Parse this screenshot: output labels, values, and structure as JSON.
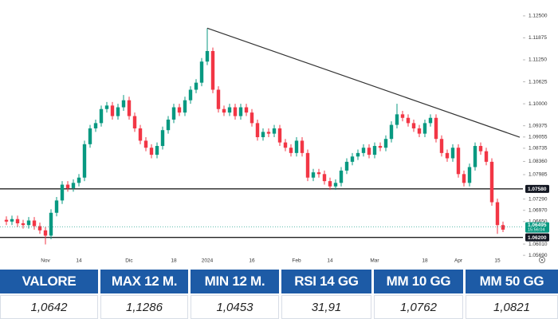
{
  "chart_data": {
    "type": "candlestick",
    "categories": [
      null,
      null,
      null,
      null,
      null,
      null,
      null,
      "Nov",
      null,
      null,
      null,
      null,
      null,
      "14",
      null,
      null,
      null,
      null,
      null,
      null,
      null,
      null,
      "Dic",
      null,
      null,
      null,
      null,
      null,
      null,
      null,
      "18",
      null,
      null,
      null,
      null,
      null,
      "2024",
      null,
      null,
      null,
      null,
      null,
      null,
      null,
      "16",
      null,
      null,
      null,
      null,
      null,
      null,
      null,
      "Feb",
      null,
      null,
      null,
      null,
      null,
      "14",
      null,
      null,
      null,
      null,
      null,
      null,
      null,
      "Mar",
      null,
      null,
      null,
      null,
      null,
      null,
      null,
      null,
      "18",
      null,
      null,
      null,
      null,
      null,
      "Apr",
      null,
      null,
      null,
      null,
      null,
      null,
      "15",
      null
    ],
    "open": [
      1.067,
      1.0665,
      1.0672,
      1.066,
      1.0655,
      1.0668,
      1.0652,
      1.064,
      1.0625,
      1.069,
      1.0725,
      1.077,
      1.076,
      1.0775,
      1.079,
      1.0885,
      1.093,
      1.0945,
      1.0985,
      1.0995,
      1.0965,
      1.099,
      1.101,
      1.0965,
      1.093,
      1.0895,
      1.0875,
      1.0855,
      1.088,
      1.0925,
      1.0955,
      1.099,
      1.0975,
      1.101,
      1.104,
      1.106,
      1.112,
      1.115,
      1.104,
      1.0985,
      1.0975,
      1.099,
      1.0965,
      1.099,
      1.0975,
      1.0945,
      1.0905,
      1.092,
      1.0915,
      1.093,
      1.089,
      1.0875,
      1.086,
      1.0895,
      1.086,
      1.079,
      1.0805,
      1.08,
      1.078,
      1.0765,
      1.0775,
      1.081,
      1.0835,
      1.085,
      1.086,
      1.0875,
      1.0855,
      1.088,
      1.0875,
      1.09,
      1.094,
      1.097,
      1.096,
      1.0945,
      1.093,
      1.0915,
      1.0945,
      1.096,
      1.09,
      1.086,
      1.0845,
      1.0875,
      1.08,
      1.0775,
      1.082,
      1.088,
      1.0865,
      1.0835,
      1.072,
      1.0655
    ],
    "high": [
      1.068,
      1.0682,
      1.0682,
      1.067,
      1.0678,
      1.0678,
      1.0662,
      1.065,
      1.07,
      1.0735,
      1.078,
      1.078,
      1.0785,
      1.08,
      1.0895,
      1.094,
      1.0955,
      1.0995,
      1.1005,
      1.1005,
      1.1,
      1.1025,
      1.102,
      1.0975,
      1.094,
      1.0905,
      1.0885,
      1.089,
      1.0935,
      1.0965,
      1.1,
      1.1,
      1.102,
      1.105,
      1.107,
      1.113,
      1.1215,
      1.116,
      1.105,
      1.0995,
      1.1,
      1.1,
      1.1,
      1.1,
      1.0985,
      1.0955,
      1.093,
      1.093,
      1.094,
      1.094,
      1.09,
      1.0885,
      1.0905,
      1.0905,
      1.087,
      1.0815,
      1.0815,
      1.081,
      1.079,
      1.0785,
      1.082,
      1.0845,
      1.086,
      1.087,
      1.0885,
      1.0885,
      1.089,
      1.089,
      1.091,
      1.095,
      1.1,
      1.098,
      1.097,
      1.0955,
      1.094,
      1.0955,
      1.097,
      1.097,
      1.091,
      1.087,
      1.0885,
      1.0885,
      1.081,
      1.083,
      1.089,
      1.089,
      1.0875,
      1.0845,
      1.073,
      1.0665
    ],
    "low": [
      1.0655,
      1.0655,
      1.065,
      1.0645,
      1.0645,
      1.0642,
      1.063,
      1.06,
      1.0615,
      1.068,
      1.0715,
      1.075,
      1.075,
      1.0765,
      1.078,
      1.0875,
      1.092,
      1.0935,
      1.0975,
      1.0955,
      1.0955,
      1.098,
      1.0955,
      1.092,
      1.0885,
      1.0865,
      1.0845,
      1.0845,
      1.087,
      1.0915,
      1.0945,
      1.0965,
      1.0965,
      1.1,
      1.103,
      1.105,
      1.111,
      1.103,
      1.0975,
      1.0965,
      1.0965,
      1.0955,
      1.0955,
      1.0965,
      1.0935,
      1.0895,
      1.0895,
      1.0905,
      1.0905,
      1.088,
      1.0865,
      1.085,
      1.085,
      1.085,
      1.078,
      1.078,
      1.079,
      1.077,
      1.0755,
      1.0755,
      1.0765,
      1.08,
      1.0825,
      1.084,
      1.085,
      1.0845,
      1.0845,
      1.0865,
      1.0865,
      1.089,
      1.093,
      1.095,
      1.0935,
      1.092,
      1.0905,
      1.0905,
      1.0935,
      1.089,
      1.085,
      1.0835,
      1.0835,
      1.079,
      1.0765,
      1.0765,
      1.081,
      1.0855,
      1.0825,
      1.071,
      1.063,
      1.0635
    ],
    "close": [
      1.0665,
      1.0672,
      1.066,
      1.0655,
      1.0668,
      1.0652,
      1.064,
      1.0625,
      1.069,
      1.0725,
      1.077,
      1.076,
      1.0775,
      1.079,
      1.0885,
      1.093,
      1.0945,
      1.0985,
      1.0995,
      1.0965,
      1.099,
      1.101,
      1.0965,
      1.093,
      1.0895,
      1.0875,
      1.0855,
      1.088,
      1.0925,
      1.0955,
      1.099,
      1.0975,
      1.101,
      1.104,
      1.106,
      1.112,
      1.115,
      1.104,
      1.0985,
      1.0975,
      1.099,
      1.0965,
      1.099,
      1.0975,
      1.0945,
      1.0905,
      1.092,
      1.0915,
      1.093,
      1.089,
      1.0875,
      1.086,
      1.0895,
      1.086,
      1.079,
      1.0805,
      1.08,
      1.078,
      1.0765,
      1.0775,
      1.081,
      1.0835,
      1.085,
      1.086,
      1.0875,
      1.0855,
      1.088,
      1.0875,
      1.09,
      1.094,
      1.097,
      1.096,
      1.0945,
      1.093,
      1.0915,
      1.0945,
      1.096,
      1.09,
      1.086,
      1.0845,
      1.0875,
      1.08,
      1.0775,
      1.082,
      1.088,
      1.0865,
      1.0835,
      1.072,
      1.0655,
      1.0642
    ],
    "up_color": "#089981",
    "down_color": "#f23645",
    "ylim": [
      1.0558,
      1.1277
    ],
    "yticks": [
      {
        "value": 1.125,
        "label": "1.12500"
      },
      {
        "value": 1.11875,
        "label": "1.11875"
      },
      {
        "value": 1.1125,
        "label": "1.11250"
      },
      {
        "value": 1.10625,
        "label": "1.10625"
      },
      {
        "value": 1.1,
        "label": "1.10000"
      },
      {
        "value": 1.09375,
        "label": "1.09375"
      },
      {
        "value": 1.09055,
        "label": "1.09055"
      },
      {
        "value": 1.08735,
        "label": "1.08735"
      },
      {
        "value": 1.0836,
        "label": "1.08360"
      },
      {
        "value": 1.07985,
        "label": "1.07985"
      },
      {
        "value": 1.0729,
        "label": "1.07290"
      },
      {
        "value": 1.0697,
        "label": "1.06970"
      },
      {
        "value": 1.0665,
        "label": "1.06650"
      },
      {
        "value": 1.0601,
        "label": "1.06010"
      },
      {
        "value": 1.0569,
        "label": "1.05690"
      }
    ],
    "grid": false,
    "price_lines": [
      {
        "value": 1.0758,
        "label": "1.07580"
      },
      {
        "value": 1.062,
        "label": "1.06200"
      }
    ],
    "last_price": {
      "value": 1.06495,
      "label": "1.06495",
      "time": "15:56:04"
    },
    "trendline": {
      "from": {
        "index": 36,
        "value": 1.1215
      },
      "to": {
        "index": 92,
        "value": 1.0905
      }
    }
  },
  "table": {
    "headers": [
      "VALORE",
      "MAX 12 M.",
      "MIN 12 M.",
      "RSI 14 GG",
      "MM 10 GG",
      "MM 50 GG"
    ],
    "rows": [
      [
        "1,0642",
        "1,1286",
        "1,0453",
        "31,91",
        "1,0762",
        "1,0821"
      ]
    ]
  }
}
